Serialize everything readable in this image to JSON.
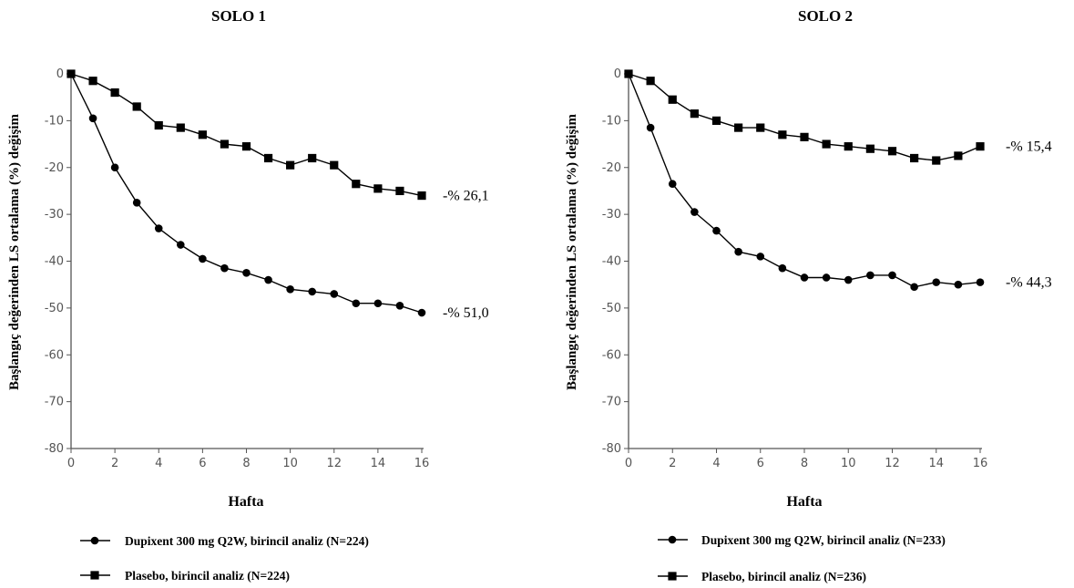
{
  "chart_data": [
    {
      "type": "line",
      "title": "SOLO 1",
      "xlabel": "Hafta",
      "ylabel": "Başlangıç değerinden LS ortalama (%) değişim",
      "xlim": [
        0,
        16
      ],
      "ylim": [
        -80,
        0
      ],
      "xticks": [
        0,
        2,
        4,
        6,
        8,
        10,
        12,
        14,
        16
      ],
      "yticks": [
        0,
        -10,
        -20,
        -30,
        -40,
        -50,
        -60,
        -70,
        -80
      ],
      "x": [
        0,
        1,
        2,
        3,
        4,
        5,
        6,
        7,
        8,
        9,
        10,
        11,
        12,
        13,
        14,
        15,
        16
      ],
      "series": [
        {
          "name": "Dupixent 300 mg Q2W, birincil analiz (N=224)",
          "marker": "circle",
          "values": [
            0,
            -9.5,
            -20,
            -27.5,
            -33,
            -36.5,
            -39.5,
            -41.5,
            -42.5,
            -44,
            -46,
            -46.5,
            -47,
            -49,
            -49,
            -49.5,
            -51
          ],
          "end_label": "-% 51,0"
        },
        {
          "name": "Plasebo, birincil analiz (N=224)",
          "marker": "square",
          "values": [
            0,
            -1.5,
            -4,
            -7,
            -11,
            -11.5,
            -13,
            -15,
            -15.5,
            -18,
            -19.5,
            -18,
            -19.5,
            -23.5,
            -24.5,
            -25,
            -26
          ],
          "end_label": "-% 26,1"
        }
      ],
      "grid": false,
      "legend": "bottom"
    },
    {
      "type": "line",
      "title": "SOLO 2",
      "xlabel": "Hafta",
      "ylabel": "Başlangıç değerinden LS ortalama (%) değişim",
      "xlim": [
        0,
        16
      ],
      "ylim": [
        -80,
        0
      ],
      "xticks": [
        0,
        2,
        4,
        6,
        8,
        10,
        12,
        14,
        16
      ],
      "yticks": [
        0,
        -10,
        -20,
        -30,
        -40,
        -50,
        -60,
        -70,
        -80
      ],
      "x": [
        0,
        1,
        2,
        3,
        4,
        5,
        6,
        7,
        8,
        9,
        10,
        11,
        12,
        13,
        14,
        15,
        16
      ],
      "series": [
        {
          "name": "Dupixent 300 mg Q2W, birincil analiz (N=233)",
          "marker": "circle",
          "values": [
            0,
            -11.5,
            -23.5,
            -29.5,
            -33.5,
            -38,
            -39,
            -41.5,
            -43.5,
            -43.5,
            -44,
            -43,
            -43,
            -45.5,
            -44.5,
            -45,
            -44.5
          ],
          "end_label": "-% 44,3"
        },
        {
          "name": "Plasebo, birincil analiz (N=236)",
          "marker": "square",
          "values": [
            0,
            -1.5,
            -5.5,
            -8.5,
            -10,
            -11.5,
            -11.5,
            -13,
            -13.5,
            -15,
            -15.5,
            -16,
            -16.5,
            -18,
            -18.5,
            -17.5,
            -15.5
          ],
          "end_label": "-% 15,4"
        }
      ],
      "grid": false,
      "legend": "bottom"
    }
  ],
  "style": {
    "line_color": "#000000",
    "axis_color": "#555555"
  }
}
